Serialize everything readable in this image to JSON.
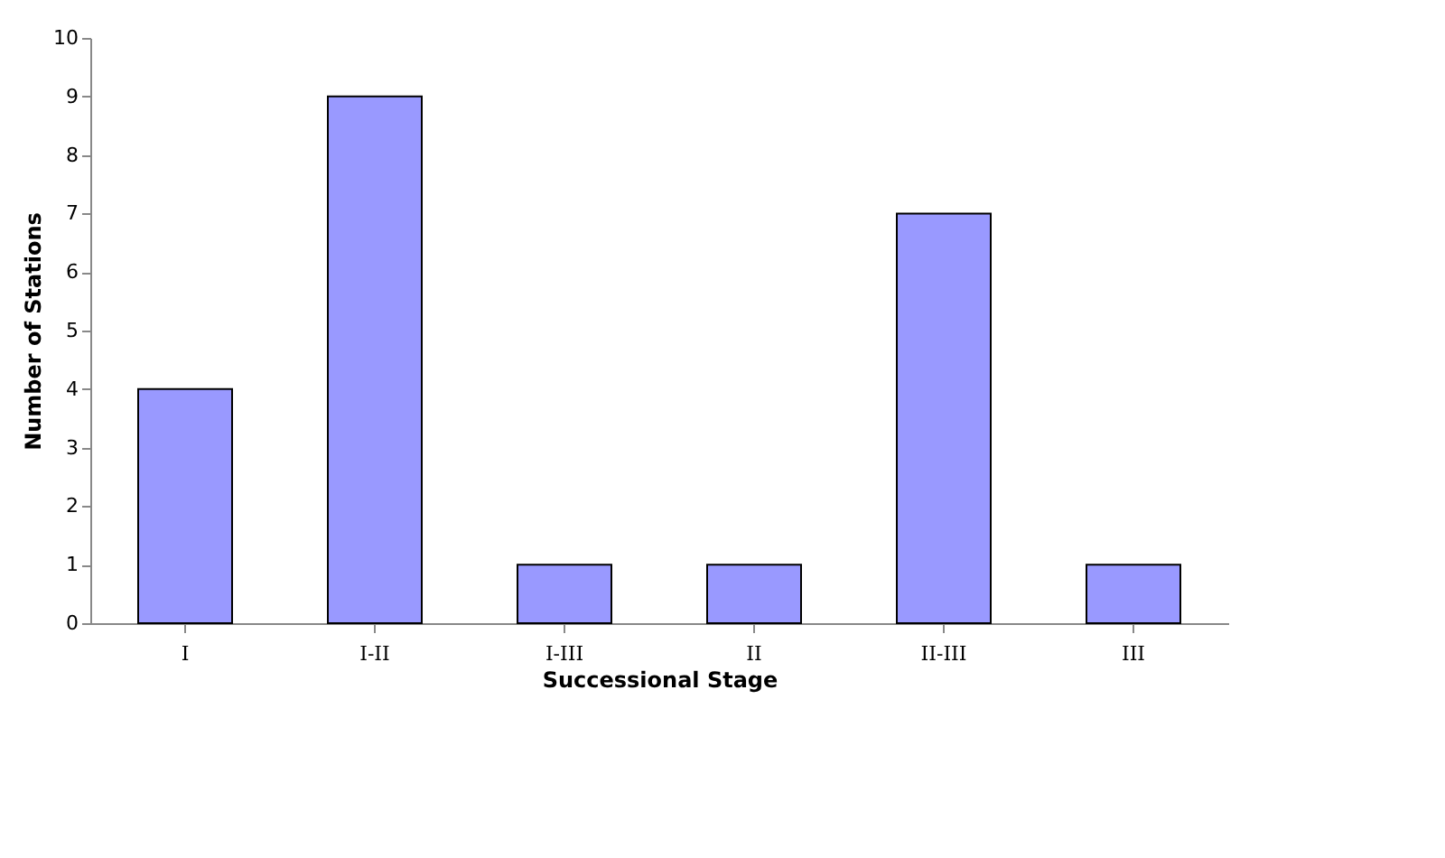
{
  "chart_data": {
    "type": "bar",
    "xlabel": "Successional Stage",
    "ylabel": "Number of Stations",
    "categories": [
      "I",
      "I-II",
      "I-III",
      "II",
      "II-III",
      "III"
    ],
    "values": [
      4,
      9,
      1,
      1,
      7,
      1
    ],
    "color": "#9999ff",
    "ylim": [
      0,
      10
    ],
    "yticks": [
      0,
      1,
      2,
      3,
      4,
      5,
      6,
      7,
      8,
      9,
      10
    ],
    "grid": false
  }
}
